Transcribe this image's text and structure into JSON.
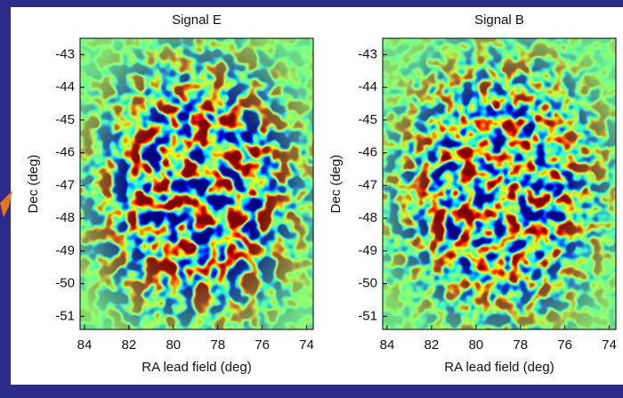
{
  "chart_data": [
    {
      "type": "heatmap",
      "title": "Signal E",
      "xlabel": "RA lead field (deg)",
      "ylabel": "Dec (deg)",
      "xlim": [
        84.2,
        73.7
      ],
      "ylim": [
        -51.4,
        -42.5
      ],
      "xticks": [
        84,
        82,
        80,
        78,
        76,
        74
      ],
      "yticks": [
        -51,
        -50,
        -49,
        -48,
        -47,
        -46,
        -45,
        -44,
        -43
      ]
    },
    {
      "type": "heatmap",
      "title": "Signal B",
      "xlabel": "RA lead field (deg)",
      "ylabel": "Dec (deg)",
      "xlim": [
        84.2,
        73.7
      ],
      "ylim": [
        -51.4,
        -42.5
      ],
      "xticks": [
        84,
        82,
        80,
        78,
        76,
        74
      ],
      "yticks": [
        -51,
        -50,
        -49,
        -48,
        -47,
        -46,
        -45,
        -44,
        -43
      ]
    }
  ]
}
